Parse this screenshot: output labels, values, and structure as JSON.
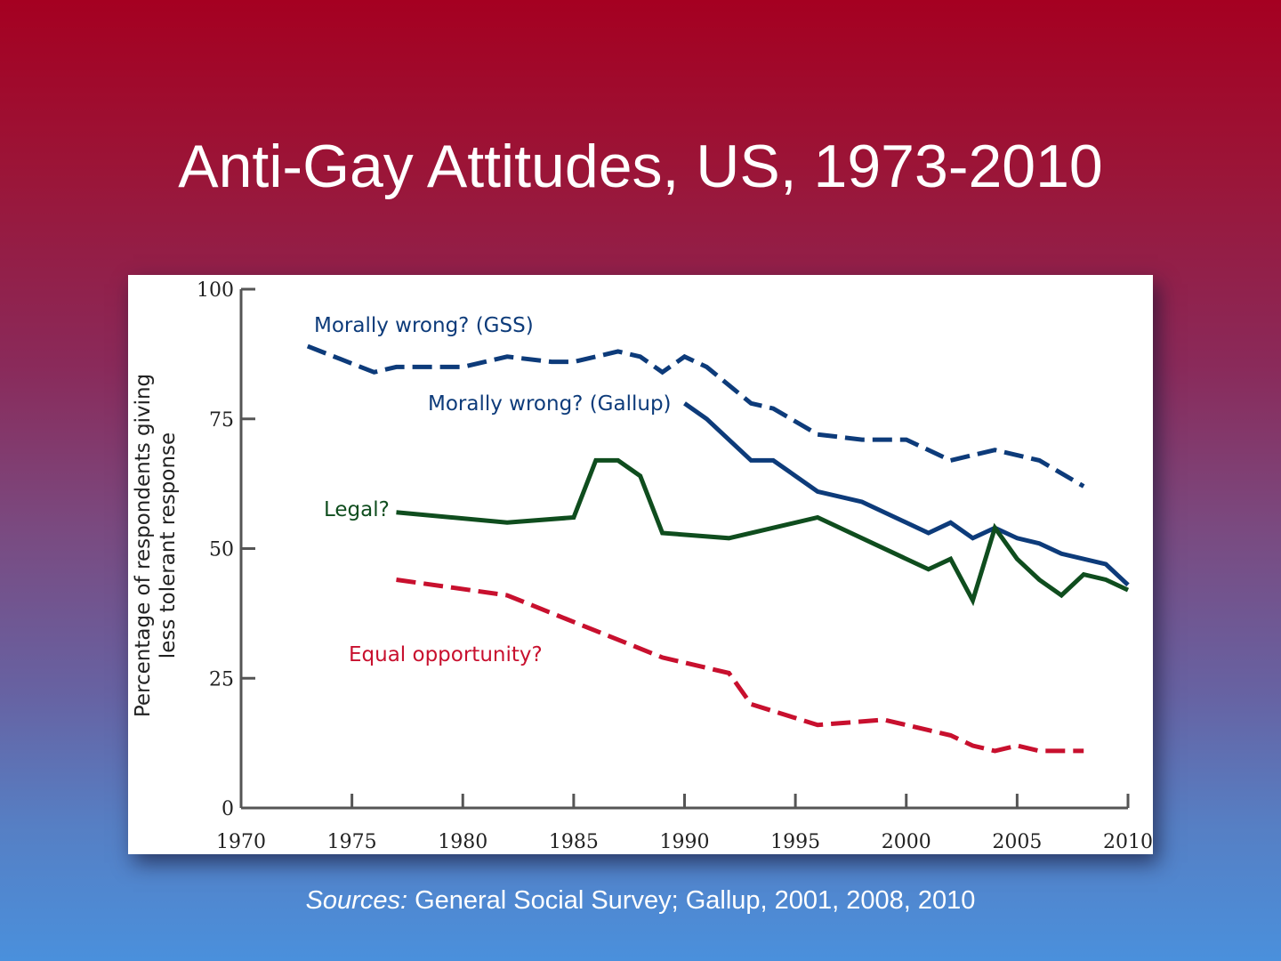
{
  "title": "Anti-Gay Attitudes, US, 1973-2010",
  "sources": {
    "prefix": "Sources:",
    "text": " General Social Survey; Gallup, 2001, 2008, 2010"
  },
  "colors": {
    "gss": "#0D3B7A",
    "gallup": "#0D3B7A",
    "legal": "#0F4D1E",
    "equal": "#C8102E",
    "axis": "#555555"
  },
  "chart_data": {
    "type": "line",
    "title": "Anti-Gay Attitudes, US, 1973-2010",
    "xlabel": "",
    "ylabel": [
      "Percentage of respondents giving",
      "less tolerant response"
    ],
    "xlim": [
      1970,
      2010
    ],
    "ylim": [
      0,
      100
    ],
    "xticks": [
      1970,
      1975,
      1980,
      1985,
      1990,
      1995,
      2000,
      2005,
      2010
    ],
    "yticks": [
      0,
      25,
      50,
      75,
      100
    ],
    "grid": false,
    "legend": "inline labels",
    "series": [
      {
        "name": "Morally wrong? (GSS)",
        "style": "dashed",
        "color_key": "gss",
        "x": [
          1973,
          1976,
          1977,
          1980,
          1982,
          1984,
          1985,
          1987,
          1988,
          1989,
          1990,
          1991,
          1993,
          1994,
          1996,
          1998,
          2000,
          2002,
          2004,
          2006,
          2008
        ],
        "y": [
          89,
          84,
          85,
          85,
          87,
          86,
          86,
          88,
          87,
          84,
          87,
          85,
          78,
          77,
          72,
          71,
          71,
          67,
          69,
          67,
          62
        ]
      },
      {
        "name": "Morally wrong? (Gallup)",
        "style": "solid",
        "color_key": "gallup",
        "x": [
          1990,
          1991,
          1993,
          1994,
          1996,
          1998,
          2001,
          2002,
          2003,
          2004,
          2005,
          2006,
          2007,
          2009,
          2010
        ],
        "y": [
          78,
          75,
          67,
          67,
          61,
          59,
          53,
          55,
          52,
          54,
          52,
          51,
          49,
          47,
          43
        ]
      },
      {
        "name": "Legal?",
        "style": "solid",
        "color_key": "legal",
        "x": [
          1977,
          1982,
          1985,
          1986,
          1987,
          1988,
          1989,
          1992,
          1996,
          2001,
          2002,
          2003,
          2004,
          2005,
          2006,
          2007,
          2008,
          2009,
          2010
        ],
        "y": [
          57,
          55,
          56,
          67,
          67,
          64,
          53,
          52,
          56,
          46,
          48,
          40,
          54,
          48,
          44,
          41,
          45,
          44,
          42
        ]
      },
      {
        "name": "Equal opportunity?",
        "style": "dashed",
        "color_key": "equal",
        "x": [
          1977,
          1982,
          1989,
          1992,
          1993,
          1996,
          1999,
          2002,
          2003,
          2004,
          2005,
          2006,
          2008
        ],
        "y": [
          44,
          41,
          29,
          26,
          20,
          16,
          17,
          14,
          12,
          11,
          12,
          11,
          11
        ]
      }
    ]
  }
}
